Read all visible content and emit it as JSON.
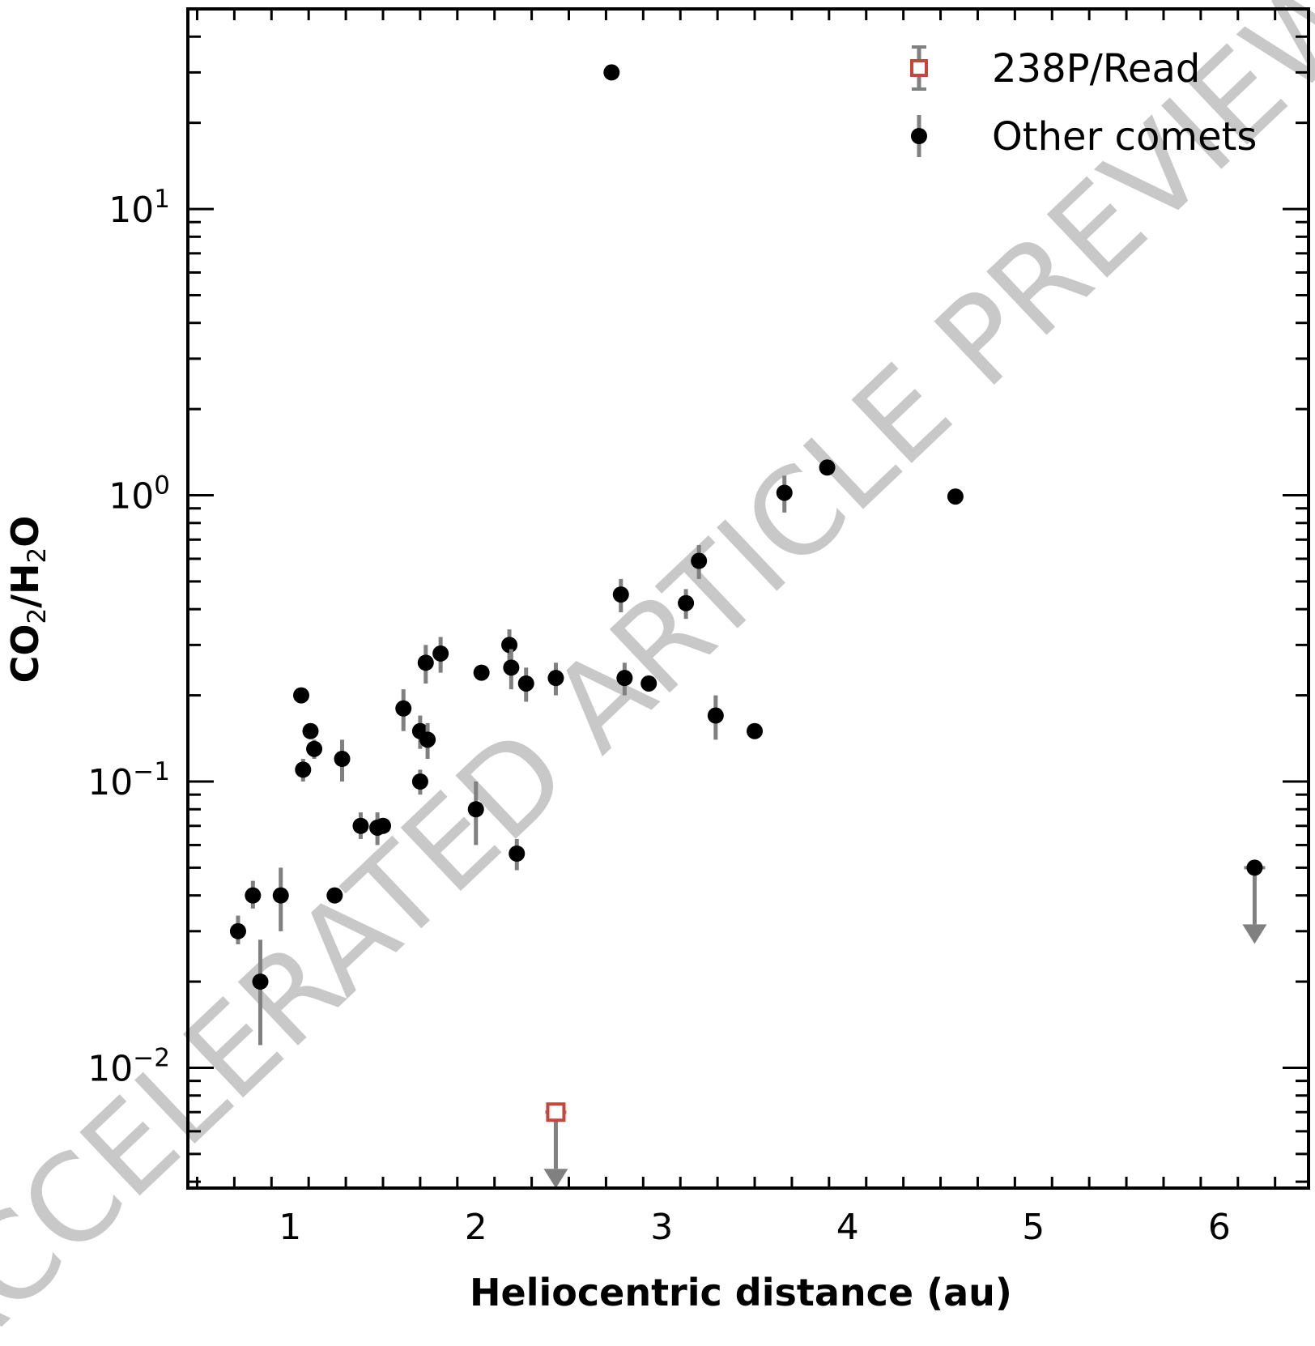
{
  "chart_data": {
    "type": "scatter",
    "xlabel": "Heliocentric distance (au)",
    "ylabel_parts": [
      "CO",
      "2",
      "/H",
      "2",
      "O"
    ],
    "yscale": "log",
    "xlim": [
      0.45,
      6.48
    ],
    "ylim": [
      0.0038,
      50
    ],
    "xticks": [
      1,
      2,
      3,
      4,
      5,
      6
    ],
    "yticks": [
      {
        "value": 0.01,
        "base": "10",
        "exp": "−2"
      },
      {
        "value": 0.1,
        "base": "10",
        "exp": "−1"
      },
      {
        "value": 1,
        "base": "10",
        "exp": "0"
      },
      {
        "value": 10,
        "base": "10",
        "exp": "1"
      }
    ],
    "legend_position": "top-right",
    "series": [
      {
        "name": "238P/Read",
        "marker": "open-square",
        "color": "#c8453c",
        "errcolor": "#808080",
        "points": [
          {
            "x": 2.43,
            "y": 0.007,
            "upper_limit": true
          }
        ]
      },
      {
        "name": "Other comets",
        "marker": "filled-circle",
        "color": "#000000",
        "errcolor": "#808080",
        "points": [
          {
            "x": 0.72,
            "y": 0.03,
            "err": [
              0.027,
              0.034
            ]
          },
          {
            "x": 0.8,
            "y": 0.04,
            "err": [
              0.036,
              0.045
            ]
          },
          {
            "x": 0.84,
            "y": 0.02,
            "err": [
              0.012,
              0.028
            ]
          },
          {
            "x": 0.95,
            "y": 0.04,
            "err": [
              0.03,
              0.05
            ]
          },
          {
            "x": 1.06,
            "y": 0.2
          },
          {
            "x": 1.07,
            "y": 0.11,
            "err": [
              0.1,
              0.12
            ]
          },
          {
            "x": 1.11,
            "y": 0.15
          },
          {
            "x": 1.13,
            "y": 0.13,
            "err": [
              0.12,
              0.14
            ]
          },
          {
            "x": 1.24,
            "y": 0.04
          },
          {
            "x": 1.28,
            "y": 0.12,
            "err": [
              0.1,
              0.14
            ]
          },
          {
            "x": 1.38,
            "y": 0.07,
            "err": [
              0.063,
              0.078
            ]
          },
          {
            "x": 1.47,
            "y": 0.069,
            "err": [
              0.06,
              0.078
            ]
          },
          {
            "x": 1.5,
            "y": 0.07
          },
          {
            "x": 1.61,
            "y": 0.18,
            "err": [
              0.15,
              0.21
            ]
          },
          {
            "x": 1.7,
            "y": 0.15,
            "err": [
              0.13,
              0.17
            ]
          },
          {
            "x": 1.7,
            "y": 0.1,
            "err": [
              0.09,
              0.11
            ]
          },
          {
            "x": 1.73,
            "y": 0.26,
            "err": [
              0.22,
              0.3
            ]
          },
          {
            "x": 1.74,
            "y": 0.14,
            "err": [
              0.12,
              0.16
            ]
          },
          {
            "x": 1.81,
            "y": 0.28,
            "err": [
              0.24,
              0.32
            ]
          },
          {
            "x": 2.0,
            "y": 0.08,
            "err": [
              0.06,
              0.1
            ]
          },
          {
            "x": 2.03,
            "y": 0.24
          },
          {
            "x": 2.18,
            "y": 0.3,
            "err": [
              0.26,
              0.34
            ]
          },
          {
            "x": 2.19,
            "y": 0.25,
            "err": [
              0.21,
              0.29
            ]
          },
          {
            "x": 2.22,
            "y": 0.056,
            "err": [
              0.049,
              0.063
            ]
          },
          {
            "x": 2.27,
            "y": 0.22,
            "err": [
              0.19,
              0.25
            ]
          },
          {
            "x": 2.43,
            "y": 0.23,
            "err": [
              0.2,
              0.26
            ]
          },
          {
            "x": 2.73,
            "y": 30
          },
          {
            "x": 2.78,
            "y": 0.45,
            "err": [
              0.39,
              0.51
            ]
          },
          {
            "x": 2.8,
            "y": 0.23,
            "err": [
              0.2,
              0.26
            ]
          },
          {
            "x": 2.93,
            "y": 0.22
          },
          {
            "x": 3.13,
            "y": 0.42,
            "err": [
              0.37,
              0.47
            ]
          },
          {
            "x": 3.2,
            "y": 0.59,
            "err": [
              0.51,
              0.67
            ]
          },
          {
            "x": 3.29,
            "y": 0.17,
            "err": [
              0.14,
              0.2
            ]
          },
          {
            "x": 3.5,
            "y": 0.15
          },
          {
            "x": 3.66,
            "y": 1.02,
            "err": [
              0.87,
              1.17
            ]
          },
          {
            "x": 3.89,
            "y": 1.25
          },
          {
            "x": 4.58,
            "y": 0.99
          },
          {
            "x": 6.19,
            "y": 0.05,
            "upper_limit": true
          }
        ]
      }
    ]
  },
  "watermark": "ACCELERATED ARTICLE PREVIEW"
}
